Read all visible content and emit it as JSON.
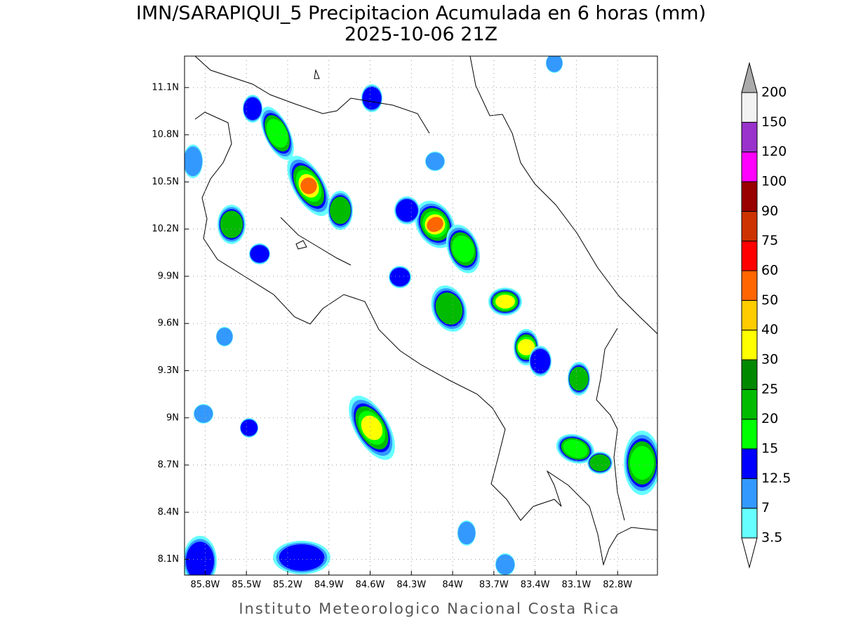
{
  "title": "IMN/SARAPIQUI_5 Precipitacion Acumulada en 6 horas (mm)",
  "subtitle": "2025-10-06 21Z",
  "footer": "Instituto Meteorologico Nacional Costa Rica",
  "map": {
    "xlim": [
      -85.95,
      -82.51
    ],
    "ylim": [
      8.0,
      11.3
    ],
    "grid": true,
    "xticks": [
      {
        "value": -85.8,
        "label": "85.8W"
      },
      {
        "value": -85.5,
        "label": "85.5W"
      },
      {
        "value": -85.2,
        "label": "85.2W"
      },
      {
        "value": -84.9,
        "label": "84.9W"
      },
      {
        "value": -84.6,
        "label": "84.6W"
      },
      {
        "value": -84.3,
        "label": "84.3W"
      },
      {
        "value": -84.0,
        "label": "84W"
      },
      {
        "value": -83.7,
        "label": "83.7W"
      },
      {
        "value": -83.4,
        "label": "83.4W"
      },
      {
        "value": -83.1,
        "label": "83.1W"
      },
      {
        "value": -82.8,
        "label": "82.8W"
      }
    ],
    "yticks": [
      {
        "value": 8.1,
        "label": "8.1N"
      },
      {
        "value": 8.4,
        "label": "8.4N"
      },
      {
        "value": 8.7,
        "label": "8.7N"
      },
      {
        "value": 9.0,
        "label": "9N"
      },
      {
        "value": 9.3,
        "label": "9.3N"
      },
      {
        "value": 9.6,
        "label": "9.6N"
      },
      {
        "value": 9.9,
        "label": "9.9N"
      },
      {
        "value": 10.2,
        "label": "10.2N"
      },
      {
        "value": 10.5,
        "label": "10.5N"
      },
      {
        "value": 10.8,
        "label": "10.8N"
      },
      {
        "value": 11.1,
        "label": "11.1N"
      }
    ]
  },
  "legend": {
    "levels": [
      3.5,
      7,
      12.5,
      15,
      20,
      25,
      30,
      40,
      50,
      60,
      75,
      90,
      100,
      120,
      150,
      200
    ],
    "colors": [
      "#66ffff",
      "#3399ff",
      "#0000ff",
      "#00ff00",
      "#00bb00",
      "#008800",
      "#ffff00",
      "#ffcc00",
      "#ff6600",
      "#ff0000",
      "#cc3300",
      "#990000",
      "#ff00ff",
      "#9933cc",
      "#f2f2f2"
    ],
    "under_color": "#ffffff",
    "over_color": "#aaaaaa"
  }
}
